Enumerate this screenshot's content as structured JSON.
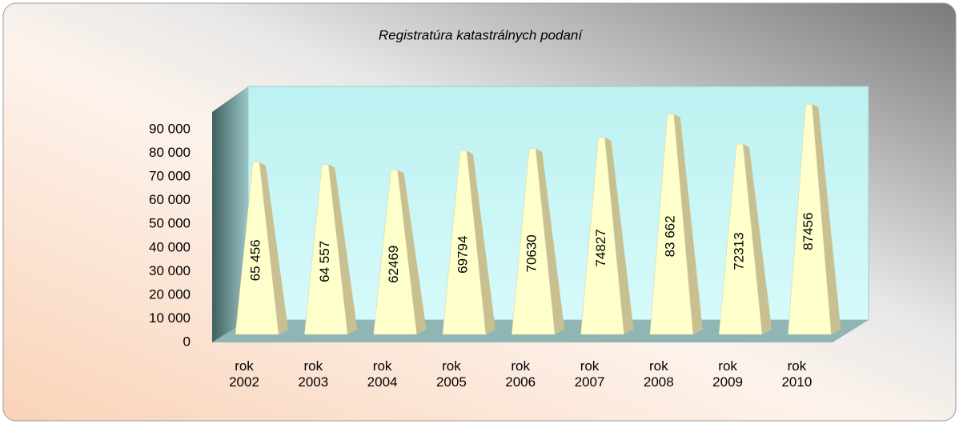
{
  "chart_data": {
    "type": "pyramid",
    "title": "Registratúra katastrálnych podaní",
    "categories": [
      "rok 2002",
      "rok 2003",
      "rok 2004",
      "rok 2005",
      "rok 2006",
      "rok 2007",
      "rok 2008",
      "rok 2009",
      "rok 2010"
    ],
    "values": [
      65456,
      64557,
      62469,
      69794,
      70630,
      74827,
      83662,
      72313,
      87456
    ],
    "value_labels": [
      "65 456",
      "64 557",
      "62469",
      "69794",
      "70630",
      "74827",
      "83 662",
      "72313",
      "87456"
    ],
    "color": "#ffffcc",
    "ylim": [
      0,
      90000
    ],
    "yticks": [
      0,
      {
        "value": 10000,
        "label": "10 000"
      },
      {
        "value": 20000,
        "label": "20 000"
      },
      {
        "value": 30000,
        "label": "30 000"
      },
      {
        "value": 40000,
        "label": "40 000"
      },
      {
        "value": 50000,
        "label": "50 000"
      },
      {
        "value": 60000,
        "label": "60 000"
      },
      {
        "value": 70000,
        "label": "70 000"
      },
      {
        "value": 80000,
        "label": "80 000"
      },
      {
        "value": 90000,
        "label": "90 000"
      }
    ]
  }
}
